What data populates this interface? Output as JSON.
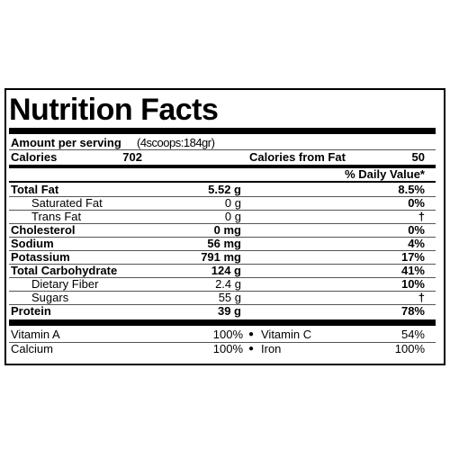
{
  "header": {
    "title": "Nutrition Facts"
  },
  "serving": {
    "label": "Amount per serving",
    "size": "(4scoops:184gr)"
  },
  "calories": {
    "label": "Calories",
    "value": "702",
    "fat_label": "Calories from Fat",
    "fat_value": "50"
  },
  "daily_value_header": "% Daily Value*",
  "nutrients": [
    [
      "Total Fat",
      "5.52 g",
      "8.5%"
    ],
    [
      "Saturated Fat",
      "0 g",
      "0%"
    ],
    [
      "Trans Fat",
      "0 g",
      "†"
    ],
    [
      "Cholesterol",
      "0 mg",
      "0%"
    ],
    [
      "Sodium",
      "56 mg",
      "4%"
    ],
    [
      "Potassium",
      "791 mg",
      "17%"
    ],
    [
      "Total Carbohydrate",
      "124 g",
      "41%"
    ],
    [
      "Dietary Fiber",
      "2.4 g",
      "10%"
    ],
    [
      "Sugars",
      "55 g",
      "†"
    ],
    [
      "Protein",
      "39 g",
      "78%"
    ]
  ],
  "vitamins": [
    [
      "Vitamin A",
      "100%",
      "Vitamin C",
      "54%"
    ],
    [
      "Calcium",
      "100%",
      "Iron",
      "100%"
    ]
  ]
}
